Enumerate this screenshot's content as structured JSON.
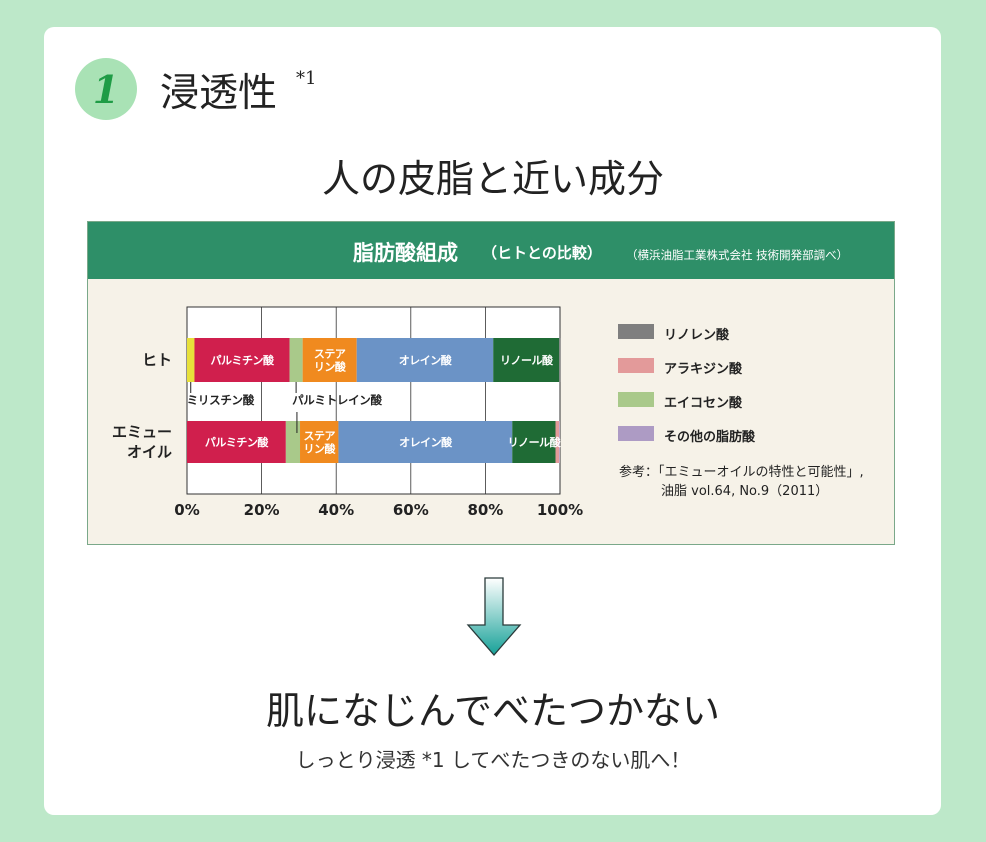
{
  "header": {
    "number": "1",
    "title": "浸透性",
    "footnote": "*1"
  },
  "subheading": "人の皮脂と近い成分",
  "panel": {
    "title_main": "脂肪酸組成",
    "title_sub": "（ヒトとの比較）",
    "source": "（横浜油脂工業株式会社  技術開発部調べ）"
  },
  "legend": [
    {
      "label": "リノレン酸",
      "color": "#7f7f7f"
    },
    {
      "label": "アラキジン酸",
      "color": "#e39a9a"
    },
    {
      "label": "エイコセン酸",
      "color": "#a9c98a"
    },
    {
      "label": "その他の脂肪酸",
      "color": "#ad9bc4"
    }
  ],
  "reference": {
    "line1": "参考：「エミューオイルの特性と可能性」,",
    "line2": "油脂 vol.64, No.9（2011）"
  },
  "chart_data": {
    "type": "bar",
    "orientation": "horizontal",
    "stacked": true,
    "xlim": [
      0,
      100
    ],
    "xticks": [
      "0%",
      "20%",
      "40%",
      "60%",
      "80%",
      "100%"
    ],
    "categories": [
      "ヒト",
      "エミューオイル"
    ],
    "category_lines": [
      [
        "ヒト"
      ],
      [
        "エミュー",
        "オイル"
      ]
    ],
    "grid": true,
    "legend_position": "right",
    "series": [
      {
        "name": "ミリスチン酸",
        "color": "#e8e03a",
        "values": [
          2.0,
          0.0
        ]
      },
      {
        "name": "パルミチン酸",
        "color": "#d01f4d",
        "values": [
          25.5,
          26.5
        ]
      },
      {
        "name": "パルミトレイン酸",
        "color": "#a9c98a",
        "values": [
          3.5,
          3.8
        ]
      },
      {
        "name": "ステアリン酸",
        "color": "#f08a1f",
        "values": [
          14.5,
          10.3
        ]
      },
      {
        "name": "オレイン酸",
        "color": "#6b93c6",
        "values": [
          36.6,
          46.6
        ]
      },
      {
        "name": "リノール酸",
        "color": "#1f6b35",
        "values": [
          17.7,
          11.6
        ]
      },
      {
        "name": "リノレン酸",
        "color": "#7f7f7f",
        "values": [
          0.4,
          0.0
        ]
      },
      {
        "name": "アラキジン酸",
        "color": "#e39a9a",
        "values": [
          0.0,
          1.0
        ]
      },
      {
        "name": "その他の脂肪酸",
        "color": "#ad9bc4",
        "values": [
          0.0,
          0.2
        ]
      }
    ],
    "bar_labels": [
      [
        {
          "series": 1,
          "lines": [
            "パルミチン酸"
          ]
        },
        {
          "series": 3,
          "lines": [
            "ステア",
            "リン酸"
          ]
        },
        {
          "series": 4,
          "lines": [
            "オレイン酸"
          ]
        },
        {
          "series": 5,
          "lines": [
            "リノール酸"
          ]
        }
      ],
      [
        {
          "series": 1,
          "lines": [
            "パルミチン酸"
          ]
        },
        {
          "series": 3,
          "lines": [
            "ステア",
            "リン酸"
          ]
        },
        {
          "series": 4,
          "lines": [
            "オレイン酸"
          ]
        },
        {
          "series": 5,
          "lines": [
            "リノール酸"
          ]
        }
      ]
    ],
    "callouts": [
      {
        "series": 0,
        "label": "ミリスチン酸"
      },
      {
        "series": 2,
        "label": "パルミトレイン酸"
      }
    ]
  },
  "benefit": {
    "title": "肌になじんでべたつかない",
    "subtitle": "しっとり浸透 *1 してべたつきのない肌へ！"
  }
}
